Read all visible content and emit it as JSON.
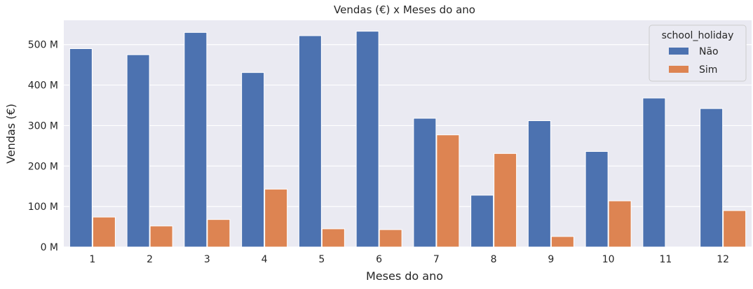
{
  "chart_data": {
    "type": "bar",
    "title": "Vendas (€) x Meses do ano",
    "xlabel": "Meses do ano",
    "ylabel": "Vendas (€)",
    "categories": [
      "1",
      "2",
      "3",
      "4",
      "5",
      "6",
      "7",
      "8",
      "9",
      "10",
      "11",
      "12"
    ],
    "ylim": [
      0,
      560
    ],
    "yticks": [
      0,
      100,
      200,
      300,
      400,
      500
    ],
    "ytick_labels": [
      "0 M",
      "100 M",
      "200 M",
      "300 M",
      "400 M",
      "500 M"
    ],
    "grid": true,
    "legend": {
      "title": "school_holiday",
      "position": "top-right"
    },
    "series": [
      {
        "name": "Não",
        "color": "#4c72b0",
        "values": [
          490,
          475,
          530,
          431,
          522,
          533,
          318,
          128,
          312,
          236,
          368,
          342
        ]
      },
      {
        "name": "Sim",
        "color": "#dd8452",
        "values": [
          74,
          52,
          68,
          143,
          45,
          43,
          277,
          231,
          26,
          114,
          0,
          90
        ]
      }
    ]
  }
}
